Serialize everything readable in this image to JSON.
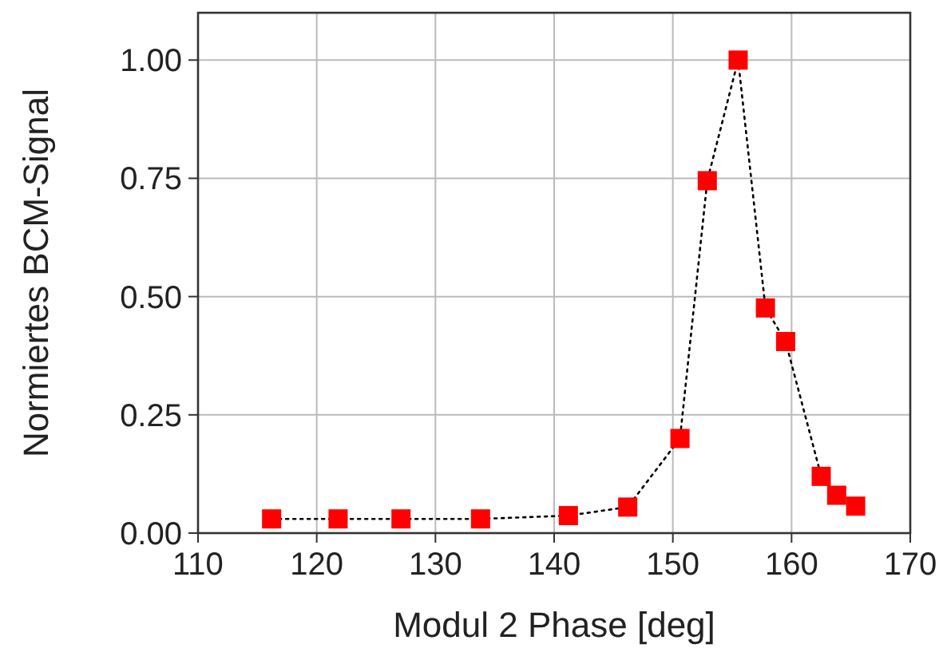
{
  "chart_data": {
    "type": "line",
    "xlabel": "Modul 2 Phase [deg]",
    "ylabel": "Normiertes BCM-Signal",
    "x": [
      116.2,
      121.8,
      127.1,
      133.8,
      141.2,
      146.2,
      150.6,
      152.9,
      155.5,
      157.8,
      159.5,
      162.5,
      163.8,
      165.4
    ],
    "series": [
      {
        "color": "#ff0000",
        "values": [
          0.03,
          0.03,
          0.03,
          0.03,
          0.037,
          0.055,
          0.2,
          0.745,
          1.0,
          0.476,
          0.405,
          0.12,
          0.08,
          0.057
        ]
      }
    ],
    "xlim": [
      110,
      170
    ],
    "xticks": [
      110,
      120,
      130,
      140,
      150,
      160,
      170
    ],
    "ylim": [
      0,
      1.1
    ],
    "yticks": [
      {
        "value": 0,
        "label": "0.00"
      },
      {
        "value": 0.25,
        "label": "0.25"
      },
      {
        "value": 0.5,
        "label": "0.50"
      },
      {
        "value": 0.75,
        "label": "0.75"
      },
      {
        "value": 1,
        "label": "1.00"
      }
    ],
    "grid": true,
    "marker": "square",
    "line_style": "dotted"
  }
}
